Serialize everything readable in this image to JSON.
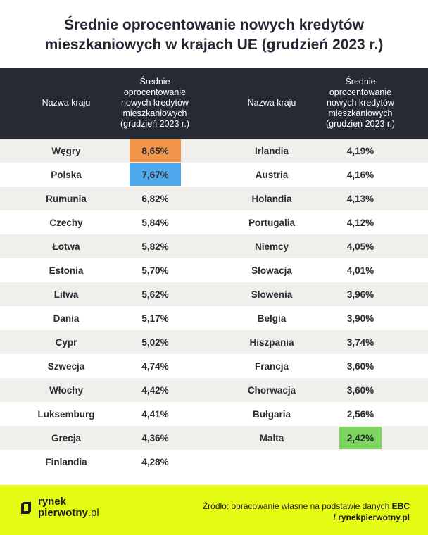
{
  "title": "Średnie oprocentowanie nowych kredytów\nmieszkaniowych w krajach UE (grudzień 2023 r.)",
  "header": {
    "col_country": "Nazwa kraju",
    "col_rate": "Średnie\noprocentowanie\nnowych kredytów\nmieszkaniowych\n(grudzień 2023 r.)"
  },
  "left_rows": [
    {
      "country": "Węgry",
      "rate": "8,65%"
    },
    {
      "country": "Polska",
      "rate": "7,67%"
    },
    {
      "country": "Rumunia",
      "rate": "6,82%"
    },
    {
      "country": "Czechy",
      "rate": "5,84%"
    },
    {
      "country": "Łotwa",
      "rate": "5,82%"
    },
    {
      "country": "Estonia",
      "rate": "5,70%"
    },
    {
      "country": "Litwa",
      "rate": "5,62%"
    },
    {
      "country": "Dania",
      "rate": "5,17%"
    },
    {
      "country": "Cypr",
      "rate": "5,02%"
    },
    {
      "country": "Szwecja",
      "rate": "4,74%"
    },
    {
      "country": "Włochy",
      "rate": "4,42%"
    },
    {
      "country": "Luksemburg",
      "rate": "4,41%"
    },
    {
      "country": "Grecja",
      "rate": "4,36%"
    },
    {
      "country": "Finlandia",
      "rate": "4,28%"
    }
  ],
  "right_rows": [
    {
      "country": "Irlandia",
      "rate": "4,19%"
    },
    {
      "country": "Austria",
      "rate": "4,16%"
    },
    {
      "country": "Holandia",
      "rate": "4,13%"
    },
    {
      "country": "Portugalia",
      "rate": "4,12%"
    },
    {
      "country": "Niemcy",
      "rate": "4,05%"
    },
    {
      "country": "Słowacja",
      "rate": "4,01%"
    },
    {
      "country": "Słowenia",
      "rate": "3,96%"
    },
    {
      "country": "Belgia",
      "rate": "3,90%"
    },
    {
      "country": "Hiszpania",
      "rate": "3,74%"
    },
    {
      "country": "Francja",
      "rate": "3,60%"
    },
    {
      "country": "Chorwacja",
      "rate": "3,60%"
    },
    {
      "country": "Bułgaria",
      "rate": "2,56%"
    },
    {
      "country": "Malta",
      "rate": "2,42%"
    }
  ],
  "highlights": {
    "left": {
      "0": "#f0954a",
      "1": "#4ea9ec"
    },
    "right": {
      "12": "#7ed55f"
    }
  },
  "footer": {
    "logo_line1": "rynek",
    "logo_line2_bold": "pierwotny",
    "logo_line2_rest": ".pl",
    "source_line1_prefix": "Źródło: opracowanie własne na podstawie danych ",
    "source_line1_bold": "EBC",
    "source_line2": "/ rynekpierwotny.pl"
  },
  "colors": {
    "header_bg": "#272934",
    "stripe": "#f1efeb",
    "footer_bg": "#e4fb14"
  }
}
